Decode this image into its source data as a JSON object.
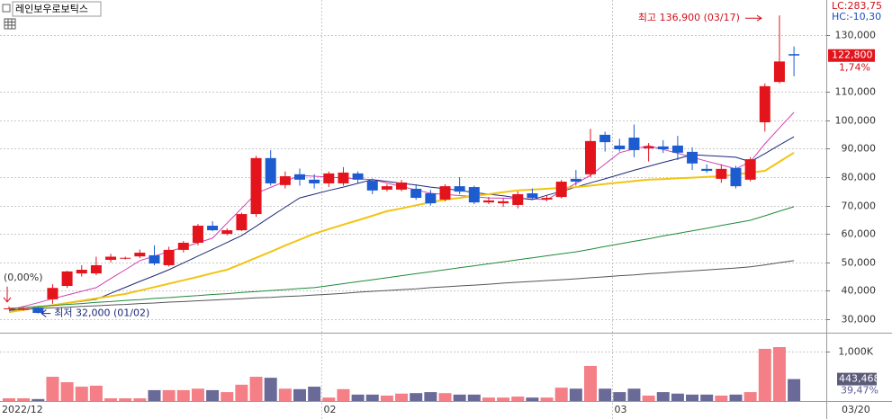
{
  "chart_data": {
    "type": "candlestick",
    "title": "레인보우로보틱스",
    "lc_label": "LC:283,75",
    "hc_label": "HC:-10,30",
    "high_label": "최고 136,900 (03/17)",
    "low_label": "최저 32,000 (01/02)",
    "start_label": "(0,00%)",
    "change_label": "1,74%",
    "volume_change_label": "39,47%",
    "end_date_label": "03/20",
    "categories": [
      "2022/12",
      null,
      null,
      null,
      null,
      null,
      null,
      null,
      null,
      null,
      null,
      null,
      null,
      null,
      null,
      null,
      null,
      null,
      null,
      null,
      null,
      null,
      "02",
      null,
      null,
      null,
      null,
      null,
      null,
      null,
      null,
      null,
      null,
      null,
      null,
      null,
      null,
      null,
      null,
      null,
      null,
      null,
      "03",
      null,
      null,
      null,
      null,
      null,
      null,
      null,
      null,
      null,
      null,
      null,
      null
    ],
    "open": [
      33800,
      33300,
      34100,
      37000,
      41700,
      46100,
      46100,
      50900,
      51300,
      52100,
      52500,
      49000,
      54400,
      56900,
      62900,
      60000,
      61300,
      67000,
      86700,
      77200,
      81000,
      79100,
      77800,
      77800,
      81300,
      78700,
      75600,
      75600,
      75900,
      74300,
      72100,
      76800,
      76500,
      71100,
      70800,
      70200,
      74300,
      72100,
      73000,
      79400,
      81000,
      94900,
      91100,
      93900,
      90100,
      90800,
      91100,
      88900,
      82900,
      79400,
      83200,
      79100,
      99300,
      113500,
      123300
    ],
    "high": [
      34500,
      34000,
      34300,
      42300,
      47000,
      49000,
      52000,
      53000,
      52000,
      54500,
      56000,
      55500,
      57500,
      63500,
      64500,
      62000,
      67500,
      87500,
      89500,
      82000,
      83000,
      81000,
      82000,
      83500,
      82000,
      79500,
      77500,
      79000,
      77500,
      75500,
      77500,
      80000,
      77000,
      73000,
      72500,
      75000,
      76000,
      73500,
      79000,
      82500,
      97000,
      96000,
      93500,
      98500,
      92000,
      93000,
      94500,
      90500,
      84500,
      84500,
      84000,
      87000,
      113000,
      136900,
      126000
    ],
    "low": [
      33500,
      33000,
      32000,
      35400,
      41000,
      45000,
      45500,
      50000,
      51000,
      51500,
      49000,
      48500,
      53500,
      56000,
      61000,
      59500,
      61000,
      66000,
      77000,
      76000,
      77000,
      76000,
      76500,
      77000,
      78000,
      74000,
      75000,
      75000,
      72000,
      70000,
      71500,
      74000,
      70500,
      70500,
      69500,
      69000,
      72000,
      71500,
      72500,
      77000,
      80000,
      89000,
      89000,
      87000,
      85500,
      88500,
      86000,
      82500,
      81500,
      78000,
      76000,
      78500,
      96000,
      113000,
      115500
    ],
    "close": [
      33800,
      33800,
      32200,
      41000,
      46800,
      47400,
      49000,
      52000,
      51600,
      53400,
      49600,
      54400,
      56900,
      62900,
      61300,
      61300,
      67000,
      86700,
      77800,
      80300,
      79100,
      77800,
      81300,
      81600,
      79100,
      75300,
      76800,
      78100,
      72700,
      70800,
      76800,
      74900,
      71100,
      71800,
      71500,
      74000,
      72700,
      72700,
      78400,
      78400,
      92700,
      92300,
      89800,
      89500,
      90800,
      89800,
      88600,
      84800,
      82200,
      82900,
      76800,
      86300,
      112000,
      120700,
      122800
    ],
    "close_value_labels": [
      null,
      null,
      null,
      null,
      null,
      null,
      null,
      null,
      null,
      null,
      null,
      null,
      null,
      null,
      null,
      null,
      null,
      null,
      null,
      null,
      null,
      null,
      null,
      null,
      null,
      null,
      null,
      null,
      null,
      null,
      null,
      null,
      null,
      null,
      null,
      null,
      null,
      null,
      null,
      null,
      null,
      null,
      null,
      null,
      null,
      null,
      null,
      null,
      null,
      null,
      null,
      null,
      null,
      null,
      "122,800"
    ],
    "volume": [
      55000,
      55000,
      40000,
      490000,
      380000,
      290000,
      310000,
      55000,
      55000,
      55000,
      220000,
      220000,
      220000,
      250000,
      220000,
      180000,
      330000,
      490000,
      470000,
      250000,
      240000,
      290000,
      70000,
      240000,
      130000,
      130000,
      110000,
      150000,
      160000,
      180000,
      160000,
      130000,
      130000,
      70000,
      70000,
      90000,
      70000,
      70000,
      270000,
      250000,
      710000,
      250000,
      180000,
      250000,
      110000,
      180000,
      150000,
      130000,
      130000,
      110000,
      130000,
      180000,
      1055000,
      1090000,
      443468
    ],
    "volume_value_labels": [
      null,
      null,
      null,
      null,
      null,
      null,
      null,
      null,
      null,
      null,
      null,
      null,
      null,
      null,
      null,
      null,
      null,
      null,
      null,
      null,
      null,
      null,
      null,
      null,
      null,
      null,
      null,
      null,
      null,
      null,
      null,
      null,
      null,
      null,
      null,
      null,
      null,
      null,
      null,
      null,
      null,
      null,
      null,
      null,
      null,
      null,
      null,
      null,
      null,
      null,
      null,
      null,
      null,
      null,
      "443,468"
    ],
    "moving_averages": [
      {
        "color": "#d23fb4",
        "values": [
          33200,
          34500,
          35800,
          37200,
          38500,
          39800,
          41100,
          44300,
          47400,
          50600,
          52200,
          53800,
          55300,
          56900,
          58500,
          63800,
          69000,
          74300,
          76400,
          78500,
          80600,
          80300,
          80000,
          79700,
          79400,
          79100,
          77900,
          76700,
          75500,
          74300,
          73900,
          73500,
          73100,
          72700,
          72600,
          72400,
          72300,
          72100,
          75000,
          77800,
          80600,
          84600,
          88600,
          89900,
          91100,
          89700,
          88400,
          87000,
          85600,
          84300,
          82900,
          85400,
          91700,
          97300,
          102800
        ]
      },
      {
        "color": "#1c2a78",
        "values": [
          32800,
          33500,
          34200,
          34900,
          35600,
          36300,
          37000,
          39100,
          41200,
          43300,
          45300,
          47400,
          49800,
          52200,
          54600,
          57000,
          59400,
          62700,
          66100,
          69400,
          72700,
          74000,
          75300,
          76500,
          77800,
          79100,
          78500,
          77800,
          77200,
          76500,
          75900,
          75300,
          74600,
          74000,
          73400,
          72700,
          72100,
          73600,
          75000,
          76500,
          78000,
          79400,
          80900,
          82400,
          83800,
          85200,
          86500,
          87900,
          87600,
          87300,
          87000,
          85400,
          88300,
          91300,
          94200
        ]
      },
      {
        "color": "#f2c414",
        "values": [
          32500,
          33300,
          34100,
          34900,
          35700,
          36500,
          37300,
          38100,
          38900,
          40100,
          41300,
          42500,
          43700,
          44900,
          46200,
          47400,
          49500,
          51600,
          53700,
          55900,
          58000,
          60100,
          61700,
          63300,
          64800,
          66400,
          68000,
          69000,
          70100,
          71100,
          72100,
          72700,
          73400,
          74000,
          74700,
          75300,
          75600,
          75900,
          76200,
          76500,
          77000,
          77600,
          78100,
          78600,
          79100,
          79300,
          79600,
          79800,
          80100,
          80300,
          80900,
          81600,
          82200,
          85400,
          88600
        ]
      },
      {
        "color": "#1f8a3a",
        "values": [
          33800,
          34100,
          34500,
          34800,
          35200,
          35500,
          35900,
          36200,
          36600,
          36900,
          37300,
          37600,
          38000,
          38300,
          38700,
          39000,
          39400,
          39700,
          40100,
          40400,
          40800,
          41100,
          41800,
          42500,
          43200,
          43900,
          44600,
          45300,
          46000,
          46700,
          47400,
          48100,
          48800,
          49500,
          50200,
          50900,
          51600,
          52300,
          53000,
          53700,
          54600,
          55600,
          56500,
          57400,
          58300,
          59300,
          60200,
          61100,
          62000,
          63000,
          63900,
          64800,
          66400,
          68000,
          69600
        ]
      },
      {
        "color": "#555555",
        "values": [
          33200,
          33500,
          33700,
          34000,
          34200,
          34500,
          34700,
          35000,
          35200,
          35500,
          35700,
          36000,
          36200,
          36500,
          36700,
          37000,
          37200,
          37500,
          37700,
          38000,
          38200,
          38500,
          38800,
          39100,
          39500,
          39800,
          40100,
          40400,
          40700,
          41100,
          41400,
          41700,
          42000,
          42300,
          42700,
          43000,
          43300,
          43600,
          43900,
          44200,
          44600,
          44900,
          45300,
          45600,
          46000,
          46300,
          46700,
          47000,
          47300,
          47700,
          48000,
          48400,
          49100,
          49900,
          50600
        ]
      }
    ],
    "up_color": "#e3141c",
    "down_color": "#1c5cd0",
    "volume_up_color": "#f47f86",
    "volume_down_color": "#6a6a98",
    "ylim": [
      25250,
      142340
    ],
    "yticks": [
      {
        "value": 30000,
        "label": "30,000"
      },
      {
        "value": 40000,
        "label": "40,000"
      },
      {
        "value": 50000,
        "label": "50,000"
      },
      {
        "value": 60000,
        "label": "60,000"
      },
      {
        "value": 70000,
        "label": "70,000"
      },
      {
        "value": 80000,
        "label": "80,000"
      },
      {
        "value": 90000,
        "label": "90,000"
      },
      {
        "value": 100000,
        "label": "100,000"
      },
      {
        "value": 110000,
        "label": "110,000"
      },
      {
        "value": 130000,
        "label": "130,000"
      }
    ],
    "volume_ylim": [
      0,
      1345000
    ],
    "volume_yticks": [
      {
        "value": 1000000,
        "label": "1,000K"
      }
    ],
    "grid": true
  }
}
